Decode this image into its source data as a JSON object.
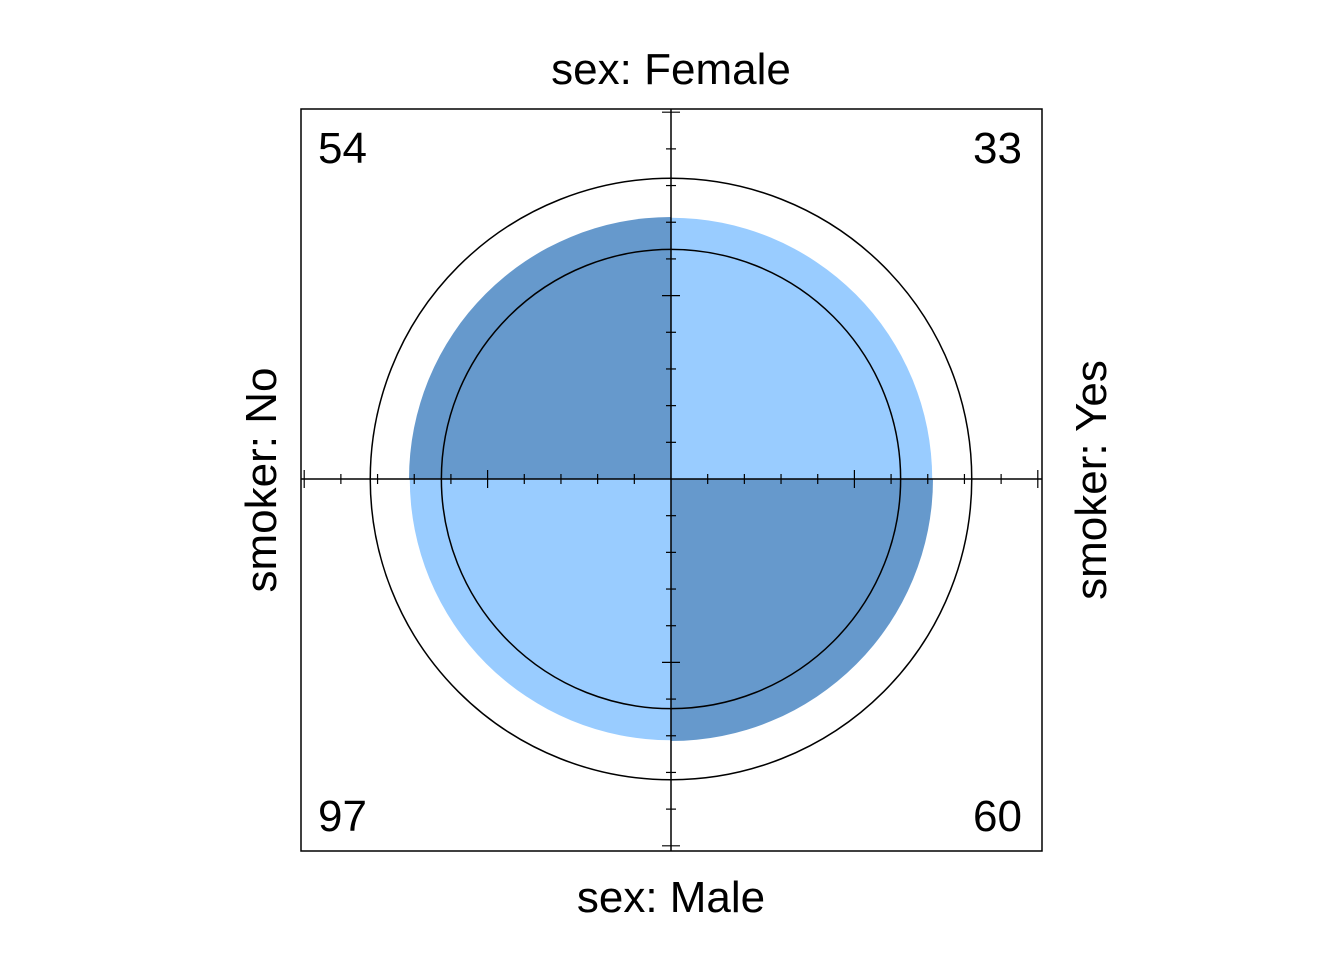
{
  "chart_data": {
    "type": "fourfold",
    "title": "",
    "row_variable": "sex",
    "col_variable": "smoker",
    "labels": {
      "top": "sex: Female",
      "bottom": "sex: Male",
      "left": "smoker: No",
      "right": "smoker: Yes"
    },
    "cells": {
      "top_left": 54,
      "top_right": 33,
      "bottom_left": 97,
      "bottom_right": 60
    },
    "colors": {
      "dark": "#6699CC",
      "light": "#99CCFF",
      "line": "#000000"
    }
  }
}
